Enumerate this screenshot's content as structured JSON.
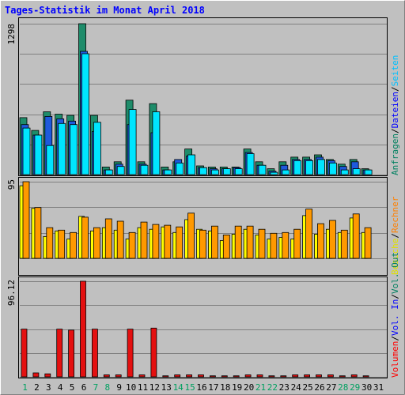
{
  "chart_data": [
    {
      "type": "bar",
      "title": "Tages-Statistik im Monat April 2018",
      "categories": [
        "1",
        "2",
        "3",
        "4",
        "5",
        "6",
        "7",
        "8",
        "9",
        "10",
        "11",
        "12",
        "13",
        "14",
        "15",
        "16",
        "17",
        "18",
        "19",
        "20",
        "21",
        "22",
        "23",
        "24",
        "25",
        "26",
        "27",
        "28",
        "29",
        "30",
        "31"
      ],
      "weekend_days": [
        1,
        7,
        8,
        14,
        15,
        21,
        22,
        28,
        29
      ],
      "ymax_label": "1298",
      "ylim": [
        0,
        1298
      ],
      "right_labels": [
        {
          "text": "Anfragen",
          "color": "#008060"
        },
        {
          "text": "/",
          "color": "#000000"
        },
        {
          "text": "Dateien",
          "color": "#0000ff"
        },
        {
          "text": "/",
          "color": "#000000"
        },
        {
          "text": "Seiten",
          "color": "#00c0ff"
        }
      ],
      "series": [
        {
          "name": "Anfragen",
          "color": "#1e8c6a",
          "values": [
            490,
            380,
            540,
            520,
            510,
            1298,
            510,
            65,
            110,
            640,
            110,
            610,
            65,
            110,
            220,
            75,
            65,
            65,
            65,
            220,
            110,
            50,
            110,
            150,
            150,
            170,
            130,
            90,
            130,
            50,
            0
          ]
        },
        {
          "name": "Dateien",
          "color": "#1e5adc",
          "values": [
            430,
            340,
            500,
            480,
            460,
            1060,
            370,
            40,
            90,
            430,
            90,
            360,
            40,
            130,
            160,
            60,
            50,
            50,
            60,
            190,
            80,
            30,
            80,
            130,
            130,
            150,
            120,
            70,
            110,
            40,
            0
          ]
        },
        {
          "name": "Seiten",
          "color": "#00e5ff",
          "values": [
            400,
            340,
            250,
            440,
            430,
            1040,
            450,
            40,
            70,
            560,
            80,
            540,
            40,
            100,
            170,
            60,
            40,
            50,
            50,
            180,
            80,
            20,
            40,
            120,
            120,
            130,
            100,
            40,
            50,
            40,
            0
          ]
        }
      ]
    },
    {
      "type": "bar",
      "ymax_label": "95",
      "ylim": [
        0,
        95
      ],
      "right_labels": [
        {
          "text": "Besuche",
          "color": "#e0e000"
        },
        {
          "text": "/",
          "color": "#000000"
        },
        {
          "text": "Rechner",
          "color": "#ff8000"
        }
      ],
      "series": [
        {
          "name": "Besuche",
          "color": "#ffff00",
          "values": [
            90,
            62,
            27,
            34,
            24,
            52,
            34,
            38,
            35,
            24,
            38,
            36,
            39,
            32,
            48,
            36,
            34,
            22,
            30,
            36,
            29,
            24,
            26,
            24,
            53,
            30,
            36,
            32,
            50,
            32,
            0
          ]
        },
        {
          "name": "Rechner",
          "color": "#ff9900",
          "values": [
            95,
            63,
            38,
            35,
            32,
            51,
            38,
            49,
            46,
            32,
            45,
            42,
            41,
            39,
            56,
            35,
            40,
            29,
            40,
            40,
            36,
            31,
            32,
            36,
            61,
            43,
            47,
            35,
            55,
            38,
            0
          ]
        }
      ]
    },
    {
      "type": "bar",
      "ymax_label": "96.12",
      "ylim": [
        0,
        96.12
      ],
      "right_labels": [
        {
          "text": "Volumen",
          "color": "#ff0000"
        },
        {
          "text": "/",
          "color": "#000000"
        },
        {
          "text": "Vol. In",
          "color": "#0000ff"
        },
        {
          "text": "/",
          "color": "#000000"
        },
        {
          "text": "Vol. Out",
          "color": "#008060"
        }
      ],
      "series": [
        {
          "name": "Volumen",
          "color": "#e41010",
          "values": [
            48,
            4,
            3,
            48,
            47,
            96.12,
            48,
            2,
            2,
            48,
            2,
            49,
            1,
            2,
            2,
            2,
            1,
            1,
            1,
            2,
            2,
            1,
            1,
            2,
            2,
            2,
            2,
            1,
            2,
            1,
            0
          ]
        }
      ]
    }
  ]
}
